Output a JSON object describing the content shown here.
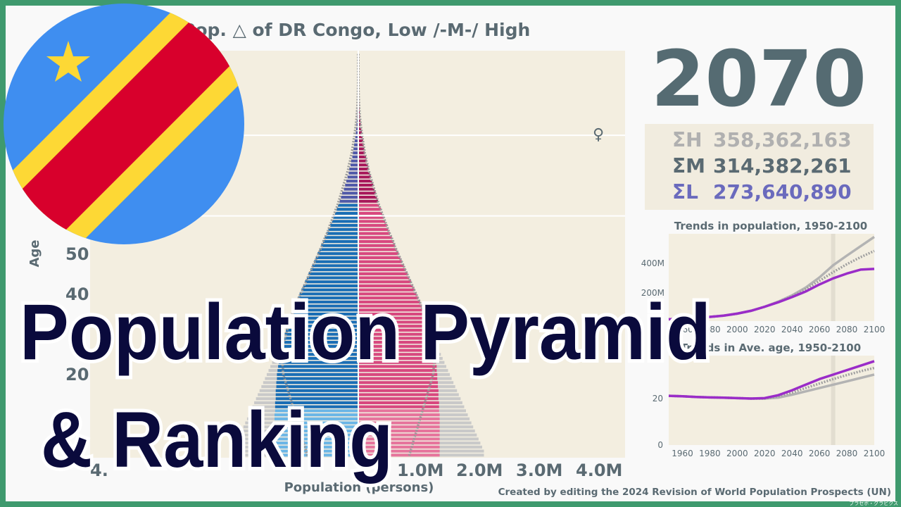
{
  "title": "Pop. △ of DR Congo, Low /-M-/ High",
  "year": "2070",
  "sums": {
    "high_label": "ΣH",
    "high_value": "358,362,163",
    "medium_label": "ΣM",
    "medium_value": "314,382,261",
    "low_label": "ΣL",
    "low_value": "273,640,890"
  },
  "female_symbol": "♀",
  "axis": {
    "ylabel": "Age",
    "xlabel": "Population (persons)",
    "x_ticks": [
      "4.",
      "1.0M",
      "2.0M",
      "3.0M",
      "4.0M"
    ],
    "y_ticks": [
      "50",
      "40",
      "20"
    ]
  },
  "mini_chart_1": {
    "title": "Trends in population, 1950-2100",
    "y_ticks": [
      "400M",
      "200M"
    ],
    "x_ticks": [
      "1960",
      "1980",
      "2000",
      "2020",
      "2040",
      "2060",
      "2080",
      "2100"
    ]
  },
  "mini_chart_2": {
    "title": "Trends in Ave. age, 1950-2100",
    "y_ticks": [
      "20",
      "0"
    ],
    "x_ticks": [
      "1960",
      "1980",
      "2000",
      "2020",
      "2040",
      "2060",
      "2080",
      "2100"
    ]
  },
  "overlay": {
    "line1": "Population Pyramid",
    "line2": "& Ranking"
  },
  "credit": "Created by editing the 2024 Revision of World Population Prospects (UN)",
  "watermark": "プラセボ・グラビクス",
  "colors": {
    "male": "#1a6eb5",
    "male_young": "#6bb6e6",
    "male_old": "#505aa8",
    "female": "#d8487f",
    "female_young": "#e6749c",
    "female_old": "#a8185a",
    "high_bars": "#c9c9c9",
    "medium_text": "#5a6a72",
    "high_text": "#b0b0b0",
    "low_text": "#6a6abd",
    "plot_bg": "#f3eee0",
    "low_line": "#9a2cc8",
    "frame": "#3f9a6e",
    "flag_blue": "#3f8ef0",
    "flag_yellow": "#fdd835",
    "flag_red": "#d8002c"
  },
  "chart_data": [
    {
      "type": "bar",
      "orientation": "horizontal-pyramid",
      "year": 2070,
      "x_unit": "persons (millions)",
      "xlim": [
        -4.3,
        4.3
      ],
      "ylim": [
        0,
        100
      ],
      "age_groups": "single years 0-100",
      "series": [
        {
          "name": "Medium-male",
          "values_by_age": [
            1.4,
            1.4,
            1.4,
            1.4,
            1.4,
            1.4,
            1.4,
            1.4,
            1.4,
            1.4,
            1.4,
            1.39,
            1.39,
            1.39,
            1.38,
            1.38,
            1.38,
            1.37,
            1.37,
            1.36,
            1.36,
            1.35,
            1.34,
            1.33,
            1.32,
            1.31,
            1.3,
            1.28,
            1.27,
            1.25,
            1.23,
            1.21,
            1.19,
            1.17,
            1.14,
            1.12,
            1.09,
            1.07,
            1.04,
            1.01,
            0.98,
            0.95,
            0.92,
            0.89,
            0.86,
            0.83,
            0.8,
            0.77,
            0.74,
            0.71,
            0.68,
            0.65,
            0.62,
            0.59,
            0.56,
            0.53,
            0.5,
            0.47,
            0.44,
            0.42,
            0.39,
            0.36,
            0.34,
            0.31,
            0.29,
            0.27,
            0.24,
            0.22,
            0.2,
            0.18,
            0.16,
            0.15,
            0.13,
            0.12,
            0.1,
            0.09,
            0.08,
            0.07,
            0.06,
            0.05,
            0.04,
            0.036,
            0.03,
            0.025,
            0.02,
            0.017,
            0.014,
            0.011,
            0.009,
            0.007,
            0.005,
            0.004,
            0.003,
            0.002,
            0.0015,
            0.001,
            0.001,
            0.0005,
            0.0005,
            0.0002,
            0.0001
          ]
        },
        {
          "name": "Medium-female",
          "values_by_age": [
            1.36,
            1.36,
            1.36,
            1.36,
            1.36,
            1.36,
            1.36,
            1.36,
            1.36,
            1.36,
            1.36,
            1.35,
            1.35,
            1.35,
            1.34,
            1.34,
            1.34,
            1.33,
            1.33,
            1.32,
            1.32,
            1.31,
            1.31,
            1.3,
            1.29,
            1.28,
            1.27,
            1.26,
            1.25,
            1.23,
            1.21,
            1.19,
            1.17,
            1.15,
            1.13,
            1.11,
            1.08,
            1.06,
            1.03,
            1.0,
            0.97,
            0.94,
            0.91,
            0.88,
            0.85,
            0.82,
            0.79,
            0.76,
            0.73,
            0.7,
            0.67,
            0.64,
            0.61,
            0.59,
            0.56,
            0.53,
            0.5,
            0.48,
            0.45,
            0.43,
            0.4,
            0.38,
            0.35,
            0.33,
            0.31,
            0.29,
            0.27,
            0.25,
            0.23,
            0.21,
            0.19,
            0.17,
            0.16,
            0.14,
            0.13,
            0.11,
            0.1,
            0.09,
            0.08,
            0.07,
            0.06,
            0.05,
            0.042,
            0.035,
            0.028,
            0.023,
            0.018,
            0.014,
            0.011,
            0.008,
            0.006,
            0.0045,
            0.0033,
            0.0024,
            0.0017,
            0.0012,
            0.0008,
            0.0005,
            0.0003,
            0.0002,
            0.0001
          ]
        },
        {
          "name": "High",
          "values_by_age": [
            2.1,
            2.1,
            2.07,
            2.04,
            2.01,
            1.98,
            1.95,
            1.92,
            1.89,
            1.86,
            1.83,
            1.8,
            1.77,
            1.74,
            1.71,
            1.68,
            1.65,
            1.62,
            1.59,
            1.56,
            1.53,
            1.5,
            1.47,
            1.44,
            1.41,
            1.38,
            1.35,
            1.32,
            1.29,
            1.26,
            1.23,
            1.21,
            1.19,
            1.17,
            1.14,
            1.12,
            1.09,
            1.07,
            1.04,
            1.01,
            0.98,
            0.95,
            0.92,
            0.89,
            0.86,
            0.83,
            0.8,
            0.77,
            0.74,
            0.71,
            0.68,
            0.65,
            0.62,
            0.59,
            0.56,
            0.53,
            0.5,
            0.47,
            0.44,
            0.42,
            0.39,
            0.36,
            0.34,
            0.31,
            0.29,
            0.27,
            0.24,
            0.22,
            0.2,
            0.18,
            0.16,
            0.15,
            0.13,
            0.12,
            0.1,
            0.09,
            0.08,
            0.07,
            0.06,
            0.05,
            0.04,
            0.036,
            0.03,
            0.025,
            0.02,
            0.017,
            0.014,
            0.011,
            0.009,
            0.007,
            0.005,
            0.004,
            0.003,
            0.002,
            0.0015,
            0.001,
            0.001,
            0.0005,
            0.0005,
            0.0002,
            0.0001
          ]
        },
        {
          "name": "Low",
          "values_by_age": [
            0.85,
            0.87,
            0.89,
            0.91,
            0.93,
            0.95,
            0.97,
            0.99,
            1.01,
            1.03,
            1.05,
            1.07,
            1.09,
            1.11,
            1.13,
            1.15,
            1.17,
            1.19,
            1.21,
            1.23,
            1.25,
            1.26,
            1.26,
            1.27,
            1.27,
            1.27,
            1.26,
            1.26,
            1.25,
            1.23,
            1.21,
            1.19,
            1.17,
            1.15,
            1.13,
            1.11,
            1.08,
            1.06,
            1.03,
            1.0,
            0.97,
            0.94,
            0.91,
            0.88,
            0.85,
            0.82,
            0.79,
            0.76,
            0.73,
            0.7,
            0.67,
            0.64,
            0.61,
            0.59,
            0.56,
            0.53,
            0.5,
            0.48,
            0.45,
            0.43,
            0.4,
            0.38,
            0.35,
            0.33,
            0.31,
            0.29,
            0.27,
            0.25,
            0.23,
            0.21,
            0.19,
            0.17,
            0.16,
            0.14,
            0.13,
            0.11,
            0.1,
            0.09,
            0.08,
            0.07,
            0.06,
            0.05,
            0.042,
            0.035,
            0.028,
            0.023,
            0.018,
            0.014,
            0.011,
            0.008,
            0.006,
            0.0045,
            0.0033,
            0.0024,
            0.0017,
            0.0012,
            0.0008,
            0.0005,
            0.0003,
            0.0002,
            0.0001
          ]
        }
      ]
    },
    {
      "type": "line",
      "title": "Trends in population, 1950-2100",
      "xlim": [
        1950,
        2100
      ],
      "ylim": [
        0,
        560
      ],
      "y_unit": "millions",
      "marker_year": 2070,
      "x": [
        1950,
        1960,
        1970,
        1980,
        1990,
        2000,
        2010,
        2020,
        2030,
        2040,
        2050,
        2060,
        2070,
        2080,
        2090,
        2100
      ],
      "series": [
        {
          "name": "High",
          "values": [
            12,
            16,
            20,
            27,
            35,
            48,
            66,
            92,
            125,
            165,
            215,
            280,
            358,
            420,
            480,
            540
          ]
        },
        {
          "name": "Medium",
          "values": [
            12,
            16,
            20,
            27,
            35,
            48,
            66,
            92,
            123,
            160,
            205,
            258,
            314,
            365,
            410,
            450
          ]
        },
        {
          "name": "Low",
          "values": [
            12,
            16,
            20,
            27,
            35,
            48,
            66,
            92,
            121,
            154,
            190,
            235,
            274,
            305,
            330,
            335
          ]
        }
      ]
    },
    {
      "type": "line",
      "title": "Trends in Ave. age, 1950-2100",
      "xlim": [
        1950,
        2100
      ],
      "ylim": [
        0,
        40
      ],
      "marker_year": 2070,
      "x": [
        1950,
        1960,
        1970,
        1980,
        1990,
        2000,
        2010,
        2020,
        2030,
        2040,
        2050,
        2060,
        2070,
        2080,
        2090,
        2100
      ],
      "series": [
        {
          "name": "High",
          "values": [
            22,
            21.8,
            21.5,
            21.3,
            21.2,
            21,
            20.8,
            20.8,
            21.2,
            22.5,
            24,
            25.5,
            27,
            28.5,
            30,
            31.5
          ]
        },
        {
          "name": "Medium",
          "values": [
            22,
            21.8,
            21.5,
            21.3,
            21.2,
            21,
            20.8,
            20.8,
            21.8,
            23.5,
            25.5,
            27.5,
            29.5,
            31.3,
            33,
            34.5
          ]
        },
        {
          "name": "Low",
          "values": [
            22,
            21.8,
            21.5,
            21.3,
            21.2,
            21,
            20.8,
            21,
            22.3,
            24.5,
            27,
            29.5,
            31.5,
            33.5,
            35.5,
            37.5
          ]
        }
      ]
    }
  ]
}
